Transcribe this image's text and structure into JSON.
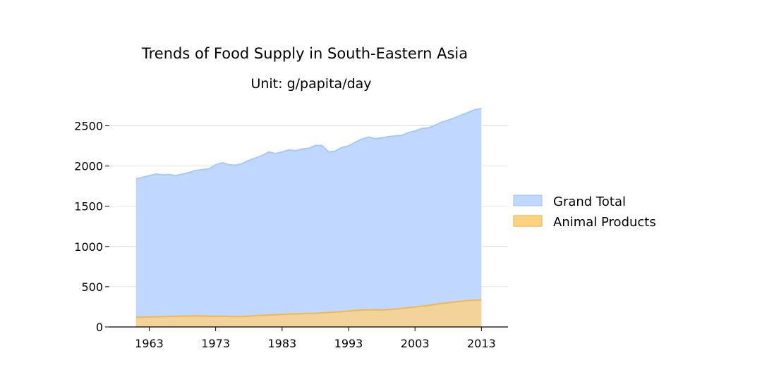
{
  "chart_data": {
    "type": "area",
    "title": "Trends of Food Supply in South-Eastern Asia",
    "subtitle": "Unit: g/papita/day",
    "xlabel": "",
    "ylabel": "",
    "xlim": [
      1957,
      2017
    ],
    "ylim": [
      0,
      2750
    ],
    "xticks": [
      1963,
      1973,
      1983,
      1993,
      2003,
      2013
    ],
    "yticks": [
      0,
      500,
      1000,
      1500,
      2000,
      2500
    ],
    "grid": "horizontal",
    "legend_position": "right",
    "x": [
      1961,
      1962,
      1963,
      1964,
      1965,
      1966,
      1967,
      1968,
      1969,
      1970,
      1971,
      1972,
      1973,
      1974,
      1975,
      1976,
      1977,
      1978,
      1979,
      1980,
      1981,
      1982,
      1983,
      1984,
      1985,
      1986,
      1987,
      1988,
      1989,
      1990,
      1991,
      1992,
      1993,
      1994,
      1995,
      1996,
      1997,
      1998,
      1999,
      2000,
      2001,
      2002,
      2003,
      2004,
      2005,
      2006,
      2007,
      2008,
      2009,
      2010,
      2011,
      2012,
      2013
    ],
    "series": [
      {
        "name": "Grand Total",
        "color": "#a8c8f9",
        "fill": "#c0d7ff",
        "values": [
          1840,
          1860,
          1880,
          1900,
          1890,
          1895,
          1880,
          1900,
          1920,
          1945,
          1955,
          1965,
          2015,
          2040,
          2015,
          2010,
          2030,
          2070,
          2100,
          2130,
          2175,
          2155,
          2175,
          2200,
          2190,
          2210,
          2220,
          2255,
          2255,
          2175,
          2185,
          2230,
          2250,
          2295,
          2335,
          2360,
          2340,
          2350,
          2365,
          2375,
          2380,
          2415,
          2435,
          2465,
          2475,
          2505,
          2545,
          2570,
          2600,
          2635,
          2665,
          2700,
          2715
        ]
      },
      {
        "name": "Animal Products",
        "color": "#f2b84b",
        "fill": "#ffd27f",
        "values": [
          120,
          122,
          124,
          126,
          128,
          130,
          132,
          134,
          136,
          138,
          136,
          134,
          132,
          134,
          130,
          128,
          130,
          135,
          140,
          145,
          148,
          152,
          156,
          160,
          162,
          165,
          168,
          170,
          175,
          180,
          185,
          190,
          198,
          205,
          210,
          212,
          214,
          210,
          215,
          222,
          230,
          238,
          248,
          258,
          268,
          280,
          292,
          300,
          310,
          320,
          328,
          332,
          335
        ]
      }
    ]
  }
}
